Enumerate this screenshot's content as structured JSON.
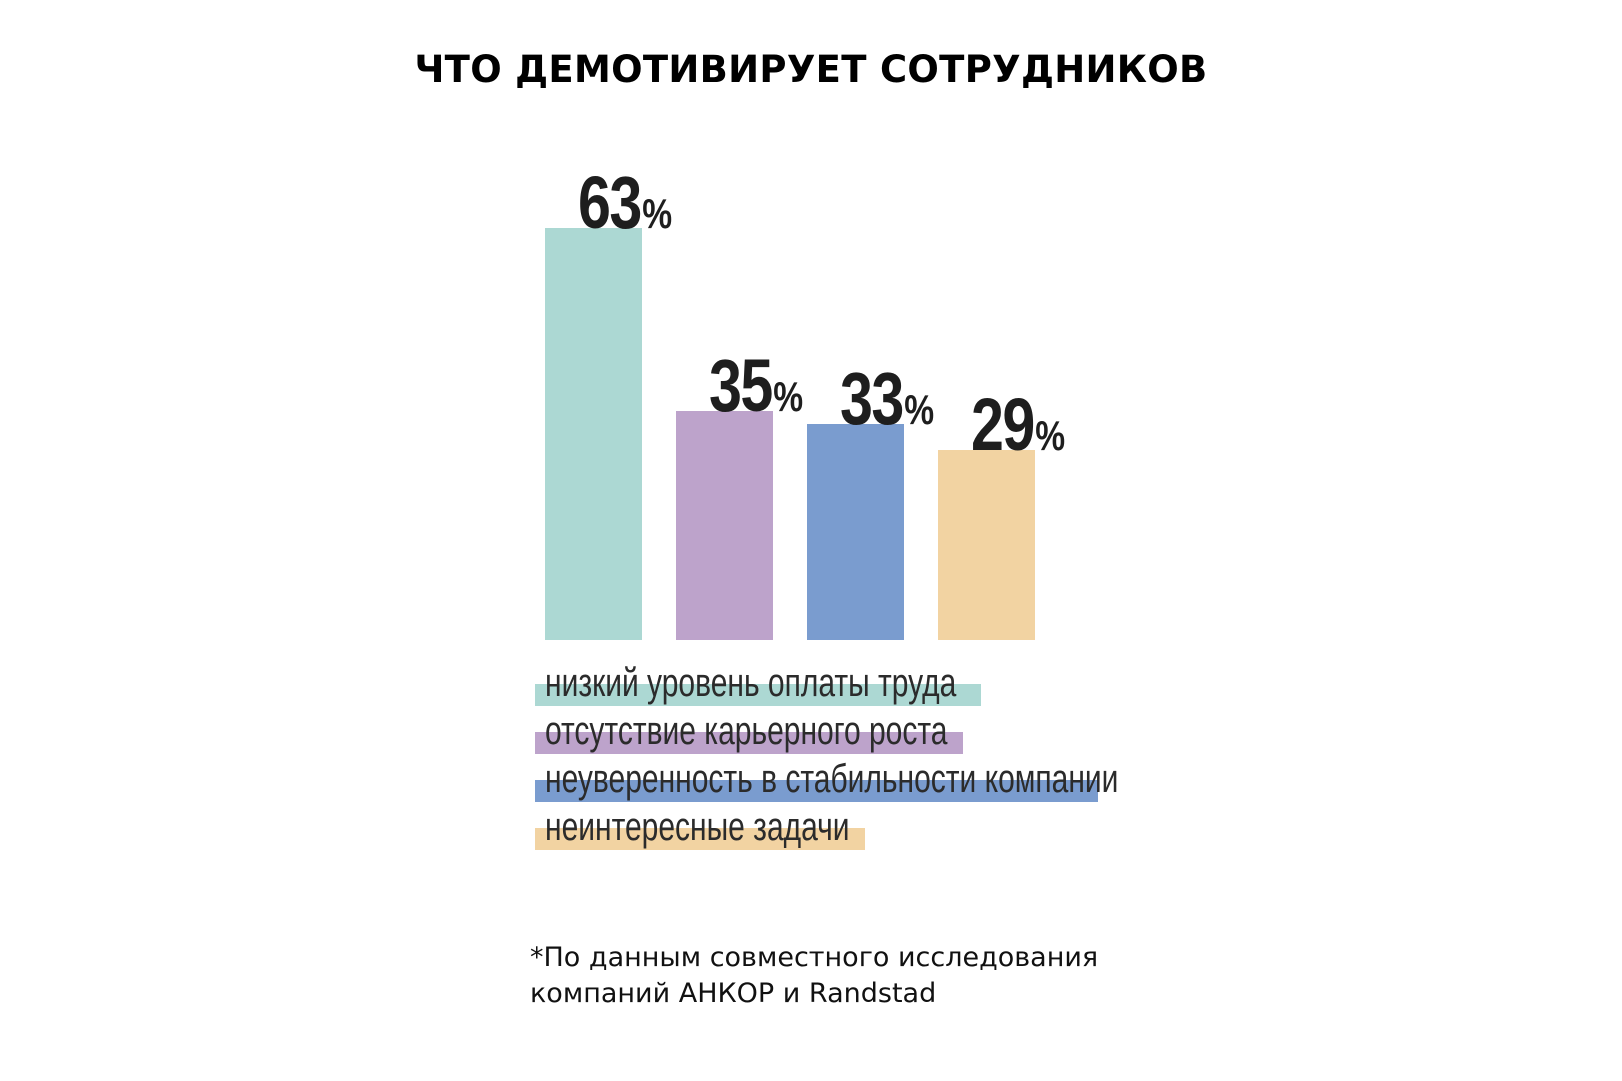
{
  "title": "ЧТО ДЕМОТИВИРУЕТ СОТРУДНИКОВ",
  "chart_data": {
    "type": "bar",
    "categories": [
      "низкий уровень оплаты труда",
      "отсутствие карьерного роста",
      "неуверенность в стабильности компании",
      "неинтересные задачи"
    ],
    "values": [
      63,
      35,
      33,
      29
    ],
    "value_labels": [
      "63",
      "35",
      "33",
      "29"
    ],
    "unit": "%",
    "colors": [
      "#acd8d3",
      "#bda3cb",
      "#7a9ccf",
      "#f2d3a2"
    ],
    "legend_placement": "bottom",
    "grid": false,
    "ylim": [
      0,
      63
    ]
  },
  "footnote": {
    "line1": "*По данным совместного исследования",
    "line2": "компаний АНКОР и Randstad"
  }
}
